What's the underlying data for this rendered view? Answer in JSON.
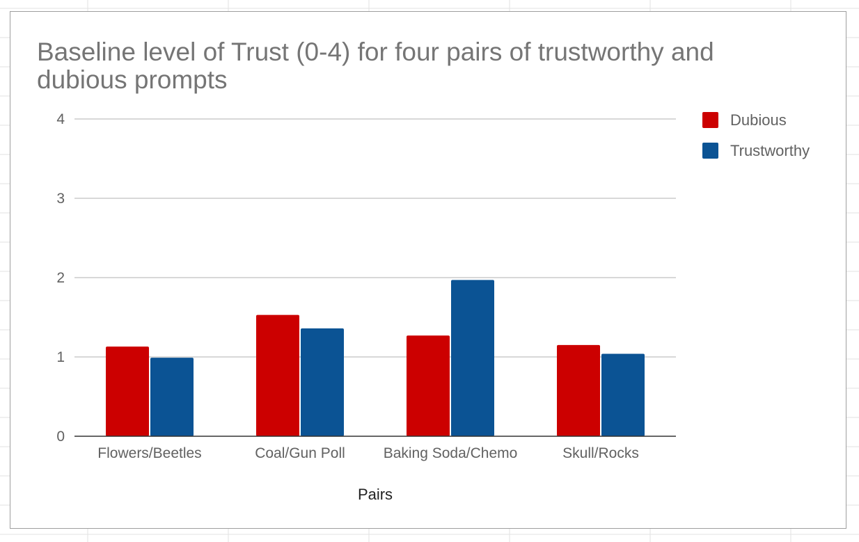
{
  "chart_data": {
    "type": "bar",
    "title": "Baseline level of Trust (0-4) for four pairs of trustworthy and dubious prompts",
    "xlabel": "Pairs",
    "ylabel": "",
    "categories": [
      "Flowers/Beetles",
      "Coal/Gun Poll",
      "Baking Soda/Chemo",
      "Skull/Rocks"
    ],
    "series": [
      {
        "name": "Dubious",
        "color": "#cc0000",
        "values": [
          1.13,
          1.53,
          1.27,
          1.15
        ]
      },
      {
        "name": "Trustworthy",
        "color": "#0b5394",
        "values": [
          0.99,
          1.36,
          1.97,
          1.04
        ]
      }
    ],
    "ylim": [
      0,
      4
    ],
    "yticks": [
      "0",
      "1",
      "2",
      "3",
      "4"
    ],
    "grid": true,
    "legend_position": "top-right"
  }
}
